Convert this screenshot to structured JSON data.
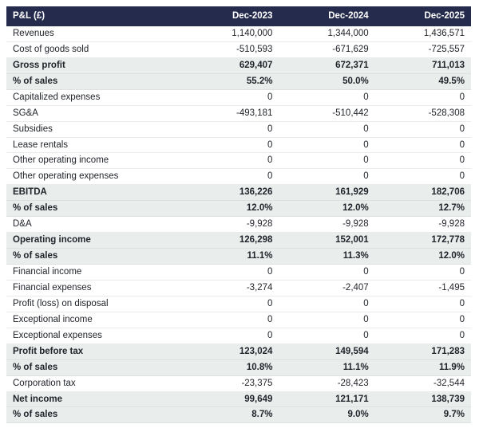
{
  "colors": {
    "header_bg": "#252b4d",
    "header_text": "#ffffff",
    "highlight_bg": "#e9edec",
    "row_border": "#e9eceb",
    "text": "#21252b"
  },
  "chart_data": {
    "type": "table",
    "title": "P&L (£)",
    "columns": [
      "Dec-2023",
      "Dec-2024",
      "Dec-2025"
    ],
    "rows": [
      {
        "label": "Revenues",
        "values": [
          "1,140,000",
          "1,344,000",
          "1,436,571"
        ],
        "bold": false
      },
      {
        "label": "Cost of goods sold",
        "values": [
          "-510,593",
          "-671,629",
          "-725,557"
        ],
        "bold": false
      },
      {
        "label": "Gross profit",
        "values": [
          "629,407",
          "672,371",
          "711,013"
        ],
        "bold": true
      },
      {
        "label": "% of sales",
        "values": [
          "55.2%",
          "50.0%",
          "49.5%"
        ],
        "bold": true
      },
      {
        "label": "Capitalized expenses",
        "values": [
          "0",
          "0",
          "0"
        ],
        "bold": false
      },
      {
        "label": "SG&A",
        "values": [
          "-493,181",
          "-510,442",
          "-528,308"
        ],
        "bold": false
      },
      {
        "label": "Subsidies",
        "values": [
          "0",
          "0",
          "0"
        ],
        "bold": false
      },
      {
        "label": "Lease rentals",
        "values": [
          "0",
          "0",
          "0"
        ],
        "bold": false
      },
      {
        "label": "Other operating income",
        "values": [
          "0",
          "0",
          "0"
        ],
        "bold": false
      },
      {
        "label": "Other operating expenses",
        "values": [
          "0",
          "0",
          "0"
        ],
        "bold": false
      },
      {
        "label": "EBITDA",
        "values": [
          "136,226",
          "161,929",
          "182,706"
        ],
        "bold": true
      },
      {
        "label": "% of sales",
        "values": [
          "12.0%",
          "12.0%",
          "12.7%"
        ],
        "bold": true
      },
      {
        "label": "D&A",
        "values": [
          "-9,928",
          "-9,928",
          "-9,928"
        ],
        "bold": false
      },
      {
        "label": "Operating income",
        "values": [
          "126,298",
          "152,001",
          "172,778"
        ],
        "bold": true
      },
      {
        "label": "% of sales",
        "values": [
          "11.1%",
          "11.3%",
          "12.0%"
        ],
        "bold": true
      },
      {
        "label": "Financial income",
        "values": [
          "0",
          "0",
          "0"
        ],
        "bold": false
      },
      {
        "label": "Financial expenses",
        "values": [
          "-3,274",
          "-2,407",
          "-1,495"
        ],
        "bold": false
      },
      {
        "label": "Profit (loss) on disposal",
        "values": [
          "0",
          "0",
          "0"
        ],
        "bold": false
      },
      {
        "label": "Exceptional income",
        "values": [
          "0",
          "0",
          "0"
        ],
        "bold": false
      },
      {
        "label": "Exceptional expenses",
        "values": [
          "0",
          "0",
          "0"
        ],
        "bold": false
      },
      {
        "label": "Profit before tax",
        "values": [
          "123,024",
          "149,594",
          "171,283"
        ],
        "bold": true
      },
      {
        "label": "% of sales",
        "values": [
          "10.8%",
          "11.1%",
          "11.9%"
        ],
        "bold": true
      },
      {
        "label": "Corporation tax",
        "values": [
          "-23,375",
          "-28,423",
          "-32,544"
        ],
        "bold": false
      },
      {
        "label": "Net income",
        "values": [
          "99,649",
          "121,171",
          "138,739"
        ],
        "bold": true
      },
      {
        "label": "% of sales",
        "values": [
          "8.7%",
          "9.0%",
          "9.7%"
        ],
        "bold": true
      }
    ]
  }
}
